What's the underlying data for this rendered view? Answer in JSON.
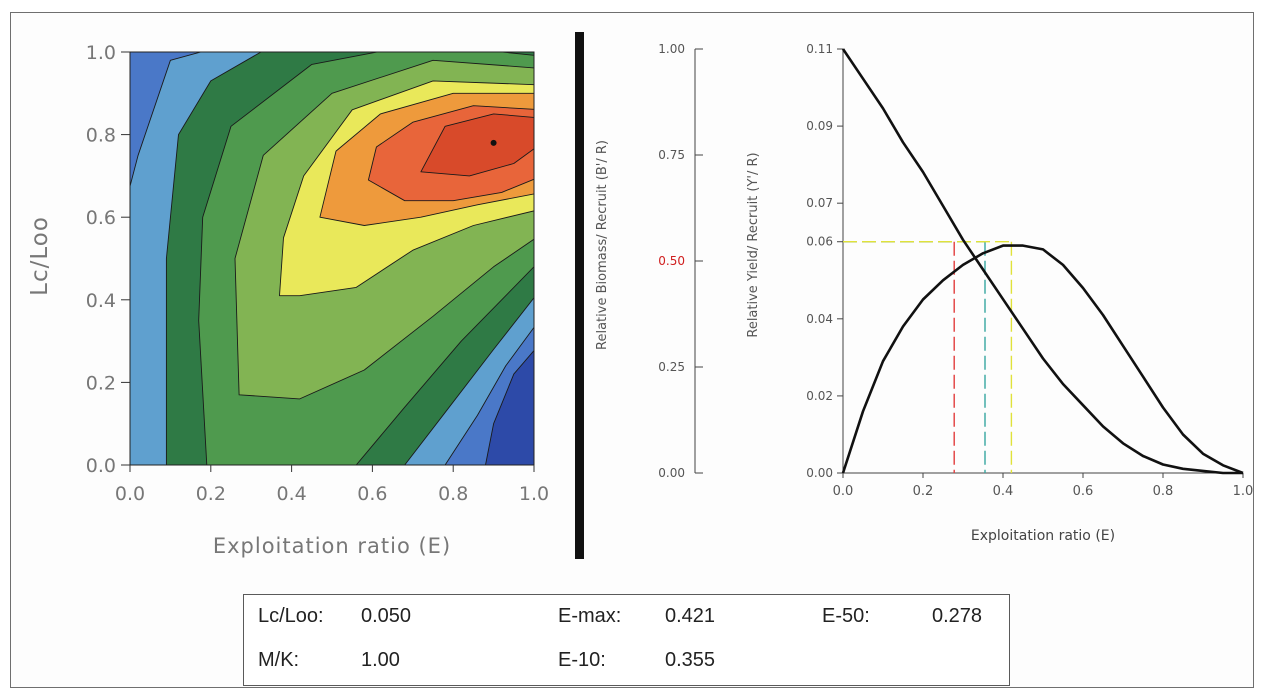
{
  "contour_plot": {
    "type": "heatmap",
    "xlabel": "Exploitation ratio (E)",
    "ylabel": "Lc/Loo",
    "x_ticks": [
      "0.0",
      "0.2",
      "0.4",
      "0.6",
      "0.8",
      "1.0"
    ],
    "y_ticks": [
      "0.0",
      "0.2",
      "0.4",
      "0.6",
      "0.8",
      "1.0"
    ],
    "xlim": [
      0,
      1
    ],
    "ylim": [
      0,
      1
    ],
    "optimum_marker": {
      "E": 0.9,
      "Lc_Loo": 0.78
    },
    "colors": {
      "low": "#2d4aa8",
      "blue": "#4a78c8",
      "light_blue": "#5fa0cf",
      "dark_green": "#2f7a45",
      "green": "#4f9a4e",
      "light_green": "#82b453",
      "yellow": "#e9e85a",
      "orange": "#ee9a3c",
      "red_orange": "#e8653a",
      "red": "#d84a2a"
    }
  },
  "chart_data": {
    "type": "line",
    "xlabel": "Exploitation ratio (E)",
    "ylabel_left": "Relative Biomass/ Recruit (B'/ R)",
    "ylabel_right": "Relative Yield/ Recruit (Y'/ R)",
    "x_ticks": [
      "0.0",
      "0.2",
      "0.4",
      "0.6",
      "0.8",
      "1.0"
    ],
    "y_left_ticks": [
      "1.00",
      "0.75",
      "0.50",
      "0.25",
      "0.00"
    ],
    "y_right_ticks": [
      "0.11",
      "0.09",
      "0.07",
      "0.06",
      "0.04",
      "0.02",
      "0.00"
    ],
    "xlim": [
      0,
      1
    ],
    "ylim_left": [
      0,
      1
    ],
    "ylim_right": [
      0,
      0.11
    ],
    "series": [
      {
        "axis": "left",
        "x": [
          0.0,
          0.05,
          0.1,
          0.15,
          0.2,
          0.25,
          0.3,
          0.35,
          0.4,
          0.45,
          0.5,
          0.55,
          0.6,
          0.65,
          0.7,
          0.75,
          0.8,
          0.85,
          0.9,
          0.95,
          1.0
        ],
        "y": [
          1.0,
          0.93,
          0.86,
          0.78,
          0.71,
          0.63,
          0.55,
          0.48,
          0.41,
          0.34,
          0.27,
          0.21,
          0.16,
          0.11,
          0.07,
          0.04,
          0.02,
          0.01,
          0.005,
          0.0,
          0.0
        ]
      },
      {
        "axis": "right",
        "x": [
          0.0,
          0.05,
          0.1,
          0.15,
          0.2,
          0.25,
          0.3,
          0.35,
          0.4,
          0.45,
          0.5,
          0.55,
          0.6,
          0.65,
          0.7,
          0.75,
          0.8,
          0.85,
          0.9,
          0.95,
          1.0
        ],
        "y": [
          0.0,
          0.016,
          0.029,
          0.038,
          0.045,
          0.05,
          0.054,
          0.057,
          0.059,
          0.059,
          0.058,
          0.054,
          0.048,
          0.041,
          0.033,
          0.025,
          0.017,
          0.01,
          0.005,
          0.002,
          0.0
        ]
      }
    ],
    "reference_lines": [
      {
        "E": 0.278,
        "y": 0.06,
        "color": "#e23c3c"
      },
      {
        "E": 0.355,
        "y": 0.06,
        "color": "#36a6a0"
      },
      {
        "E": 0.421,
        "y": 0.06,
        "color": "#e0e23a"
      }
    ],
    "highlight_tick": "0.50",
    "highlight_color": "#d02020"
  },
  "parameters": {
    "lc_loo_label": "Lc/Loo:",
    "lc_loo_value": "0.050",
    "emax_label": "E-max:",
    "emax_value": "0.421",
    "e50_label": "E-50:",
    "e50_value": "0.278",
    "mk_label": "M/K:",
    "mk_value": "1.00",
    "e10_label": "E-10:",
    "e10_value": "0.355"
  }
}
